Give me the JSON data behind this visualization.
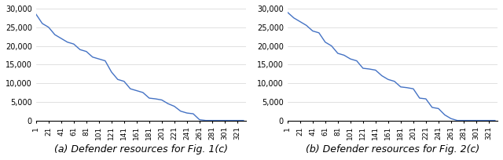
{
  "chart1": {
    "caption": "(a) Defender resources for Fig. 1(c)",
    "line_color": "#4472C4",
    "ylim": [
      0,
      30000
    ],
    "yticks": [
      0,
      5000,
      10000,
      15000,
      20000,
      25000,
      30000
    ],
    "xtick_labels": [
      "1",
      "21",
      "41",
      "61",
      "81",
      "101",
      "121",
      "141",
      "161",
      "181",
      "201",
      "221",
      "241",
      "261",
      "281",
      "301",
      "321"
    ],
    "xtick_positions": [
      1,
      21,
      41,
      61,
      81,
      101,
      121,
      141,
      161,
      181,
      201,
      221,
      241,
      261,
      281,
      301,
      321
    ],
    "x_values": [
      1,
      11,
      21,
      31,
      41,
      51,
      61,
      71,
      81,
      91,
      101,
      111,
      121,
      131,
      141,
      151,
      161,
      171,
      181,
      191,
      201,
      211,
      221,
      231,
      241,
      251,
      261,
      271,
      281,
      291,
      301,
      311,
      321,
      331
    ],
    "y_values": [
      28500,
      26000,
      25000,
      23000,
      22000,
      21000,
      20500,
      19000,
      18500,
      17000,
      16500,
      16000,
      13000,
      11000,
      10500,
      8500,
      8000,
      7500,
      6000,
      5800,
      5500,
      4500,
      3800,
      2500,
      2000,
      1800,
      200,
      0,
      0,
      0,
      0,
      0,
      0,
      0
    ]
  },
  "chart2": {
    "caption": "(b) Defender resources for Fig. 2(c)",
    "line_color": "#4472C4",
    "ylim": [
      0,
      30000
    ],
    "yticks": [
      0,
      5000,
      10000,
      15000,
      20000,
      25000,
      30000
    ],
    "xtick_labels": [
      "1",
      "21",
      "41",
      "61",
      "81",
      "101",
      "121",
      "141",
      "161",
      "181",
      "201",
      "221",
      "241",
      "261",
      "281",
      "301",
      "321"
    ],
    "xtick_positions": [
      1,
      21,
      41,
      61,
      81,
      101,
      121,
      141,
      161,
      181,
      201,
      221,
      241,
      261,
      281,
      301,
      321
    ],
    "x_values": [
      1,
      11,
      21,
      31,
      41,
      51,
      61,
      71,
      81,
      91,
      101,
      111,
      121,
      131,
      141,
      151,
      161,
      171,
      181,
      191,
      201,
      211,
      221,
      231,
      241,
      251,
      261,
      271,
      281,
      291,
      301,
      311,
      321,
      331
    ],
    "y_values": [
      29000,
      27500,
      26500,
      25500,
      24000,
      23500,
      21000,
      20000,
      18000,
      17500,
      16500,
      16000,
      14000,
      13800,
      13500,
      12000,
      11000,
      10500,
      9000,
      8800,
      8500,
      6000,
      5800,
      3500,
      3200,
      1500,
      500,
      0,
      0,
      0,
      0,
      0,
      0,
      0
    ]
  },
  "background_color": "#ffffff",
  "caption_fontsize": 9,
  "tick_fontsize": 6.5,
  "ytick_fontsize": 7
}
